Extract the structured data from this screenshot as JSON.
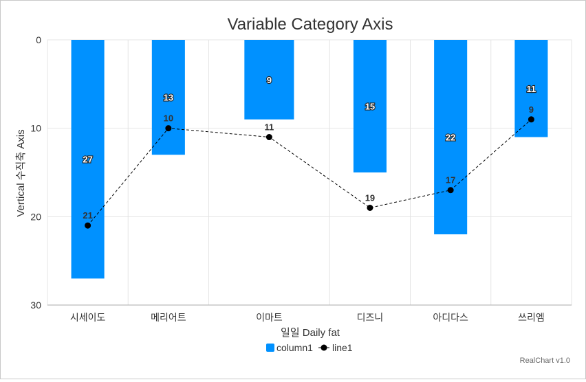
{
  "chart_data": {
    "type": "bar",
    "title": "Variable Category Axis",
    "xlabel": "일일 Daily fat",
    "ylabel": "Vertical 수직축 Axis",
    "categories": [
      "시세이도",
      "메리어트",
      "이마트",
      "디즈니",
      "아디다스",
      "쓰리엠"
    ],
    "category_widths": [
      1,
      1,
      1.5,
      1,
      1,
      1
    ],
    "ylim": [
      0,
      30
    ],
    "y_reversed": true,
    "yticks": [
      0,
      10,
      20,
      30
    ],
    "grid": true,
    "legend_position": "bottom",
    "series": [
      {
        "name": "column1",
        "type": "bar",
        "color": "#0091ff",
        "values": [
          27,
          13,
          9,
          15,
          22,
          11
        ]
      },
      {
        "name": "line1",
        "type": "line",
        "color": "#000000",
        "dashed": true,
        "values": [
          21,
          10,
          11,
          19,
          17,
          9
        ]
      }
    ]
  },
  "credit": "RealChart v1.0"
}
